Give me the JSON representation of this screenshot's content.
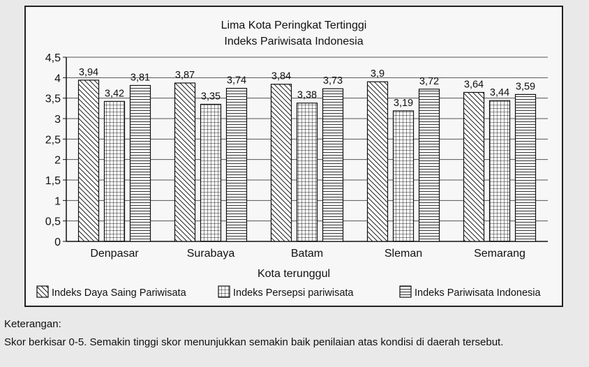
{
  "chart_data": {
    "type": "bar",
    "title": "Lima Kota Peringkat Tertinggi",
    "subtitle": "Indeks Pariwisata Indonesia",
    "xlabel": "Kota terunggul",
    "ylabel": "",
    "ylim": [
      0,
      4.5
    ],
    "yticks": [
      "0",
      "0,5",
      "1",
      "1,5",
      "2",
      "2,5",
      "3",
      "3,5",
      "4",
      "4,5"
    ],
    "categories": [
      "Denpasar",
      "Surabaya",
      "Batam",
      "Sleman",
      "Semarang"
    ],
    "series": [
      {
        "name": "Indeks Daya Saing Pariwisata",
        "values": [
          3.94,
          3.87,
          3.84,
          3.9,
          3.64
        ],
        "labels": [
          "3,94",
          "3,87",
          "3,84",
          "3,9",
          "3,64"
        ],
        "pattern": "diagonal"
      },
      {
        "name": "Indeks Persepsi pariwisata",
        "values": [
          3.42,
          3.35,
          3.38,
          3.19,
          3.44
        ],
        "labels": [
          "3,42",
          "3,35",
          "3,38",
          "3,19",
          "3,44"
        ],
        "pattern": "grid"
      },
      {
        "name": "Indeks Pariwisata Indonesia",
        "values": [
          3.81,
          3.74,
          3.73,
          3.72,
          3.59
        ],
        "labels": [
          "3,81",
          "3,74",
          "3,73",
          "3,72",
          "3,59"
        ],
        "pattern": "horizontal"
      }
    ],
    "grid": true,
    "legend": "bottom"
  },
  "note": {
    "title": "Keterangan:",
    "body": "Skor berkisar 0-5. Semakin tinggi skor menunjukkan semakin baik penilaian atas kondisi di daerah tersebut."
  }
}
